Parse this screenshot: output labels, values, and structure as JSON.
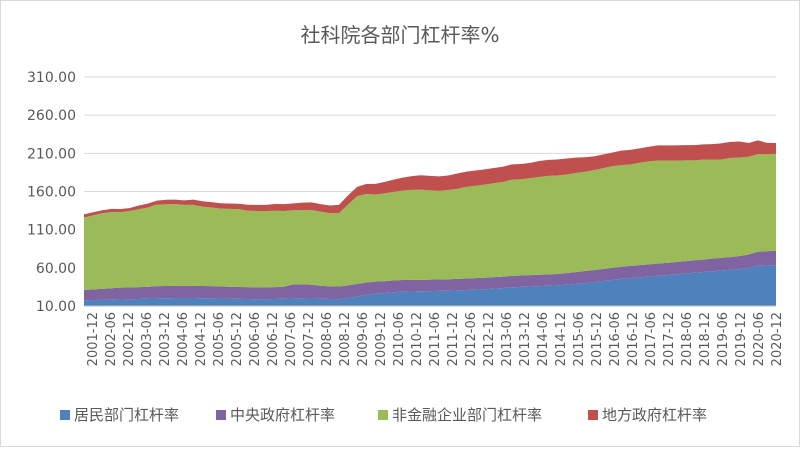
{
  "chart_data": {
    "type": "area",
    "stacked": true,
    "title": "社科院各部门杠杆率%",
    "xlabel": "",
    "ylabel": "",
    "ylim": [
      10,
      310
    ],
    "yticks": [
      "10.00",
      "60.00",
      "110.00",
      "160.00",
      "210.00",
      "260.00",
      "310.00"
    ],
    "grid": true,
    "legend_position": "bottom",
    "x_tick_labels": [
      "2001-12",
      "2002-06",
      "2002-12",
      "2003-06",
      "2003-12",
      "2004-06",
      "2004-12",
      "2005-06",
      "2005-12",
      "2006-06",
      "2006-12",
      "2007-06",
      "2007-12",
      "2008-06",
      "2008-12",
      "2009-06",
      "2009-12",
      "2010-06",
      "2010-12",
      "2011-06",
      "2011-12",
      "2012-06",
      "2012-12",
      "2013-06",
      "2013-12",
      "2014-06",
      "2014-12",
      "2015-06",
      "2015-12",
      "2016-06",
      "2016-12",
      "2017-06",
      "2017-12",
      "2018-06",
      "2018-12",
      "2019-06",
      "2019-12",
      "2020-06",
      "2020-12"
    ],
    "x_quarters": [
      "2001-12",
      "2002-03",
      "2002-06",
      "2002-09",
      "2002-12",
      "2003-03",
      "2003-06",
      "2003-09",
      "2003-12",
      "2004-03",
      "2004-06",
      "2004-09",
      "2004-12",
      "2005-03",
      "2005-06",
      "2005-09",
      "2005-12",
      "2006-03",
      "2006-06",
      "2006-09",
      "2006-12",
      "2007-03",
      "2007-06",
      "2007-09",
      "2007-12",
      "2008-03",
      "2008-06",
      "2008-09",
      "2008-12",
      "2009-03",
      "2009-06",
      "2009-09",
      "2009-12",
      "2010-03",
      "2010-06",
      "2010-09",
      "2010-12",
      "2011-03",
      "2011-06",
      "2011-09",
      "2011-12",
      "2012-03",
      "2012-06",
      "2012-09",
      "2012-12",
      "2013-03",
      "2013-06",
      "2013-09",
      "2013-12",
      "2014-03",
      "2014-06",
      "2014-09",
      "2014-12",
      "2015-03",
      "2015-06",
      "2015-09",
      "2015-12",
      "2016-03",
      "2016-06",
      "2016-09",
      "2016-12",
      "2017-03",
      "2017-06",
      "2017-09",
      "2017-12",
      "2018-03",
      "2018-06",
      "2018-09",
      "2018-12",
      "2019-03",
      "2019-06",
      "2019-09",
      "2019-12",
      "2020-03",
      "2020-06",
      "2020-09",
      "2020-12"
    ],
    "series": [
      {
        "name": "居民部门杠杆率",
        "color": "#4f81bd",
        "values": [
          17.5,
          17.8,
          18.0,
          18.2,
          18.5,
          18.8,
          19.2,
          19.6,
          20.0,
          20.2,
          20.4,
          20.4,
          20.4,
          20.2,
          20.0,
          19.8,
          19.6,
          19.4,
          19.2,
          19.0,
          19.0,
          19.2,
          19.6,
          20.0,
          20.0,
          19.8,
          19.5,
          19.2,
          19.0,
          20.5,
          22.5,
          24.5,
          26.0,
          27.0,
          28.0,
          28.8,
          29.0,
          29.3,
          29.5,
          29.8,
          30.0,
          30.5,
          31.0,
          31.5,
          32.0,
          32.8,
          33.5,
          34.5,
          35.0,
          35.5,
          36.0,
          36.5,
          37.0,
          37.8,
          38.8,
          40.0,
          41.0,
          42.5,
          44.0,
          45.5,
          46.5,
          47.5,
          48.5,
          49.5,
          50.5,
          51.5,
          52.5,
          53.5,
          54.5,
          55.5,
          56.5,
          57.5,
          58.5,
          60.0,
          62.5,
          63.0,
          63.5
        ]
      },
      {
        "name": "中央政府杠杆率",
        "color": "#8064a2",
        "values": [
          13.5,
          14.0,
          14.5,
          15.0,
          15.5,
          15.5,
          15.5,
          15.5,
          16.0,
          16.0,
          16.0,
          16.0,
          16.0,
          16.0,
          16.0,
          15.8,
          15.6,
          15.5,
          15.5,
          15.5,
          15.5,
          15.5,
          15.8,
          18.5,
          18.5,
          18.0,
          17.0,
          16.5,
          16.5,
          16.5,
          16.5,
          16.3,
          16.0,
          15.5,
          15.5,
          15.3,
          15.2,
          15.0,
          15.0,
          15.0,
          15.0,
          15.0,
          15.0,
          15.0,
          15.0,
          15.0,
          15.0,
          15.0,
          15.0,
          15.0,
          15.0,
          15.0,
          15.0,
          15.5,
          15.5,
          15.8,
          16.0,
          16.0,
          16.0,
          16.0,
          16.0,
          16.0,
          16.0,
          16.0,
          16.0,
          16.0,
          16.2,
          16.2,
          16.3,
          16.5,
          16.5,
          16.5,
          17.0,
          17.5,
          18.5,
          18.7,
          19.0
        ]
      },
      {
        "name": "非金融企业部门杠杆率",
        "color": "#9bbb59",
        "values": [
          95,
          97,
          99,
          100,
          99,
          100,
          102,
          104,
          107,
          107,
          107,
          106,
          106,
          104,
          103,
          102,
          102,
          102,
          100,
          100,
          100,
          100,
          99,
          97,
          97,
          98,
          97,
          96,
          96,
          106,
          115,
          116,
          114,
          115,
          116,
          117,
          118,
          118,
          117,
          116,
          117,
          118,
          120,
          121,
          122,
          123,
          124,
          126,
          126,
          127,
          128,
          129,
          129,
          129,
          130,
          130,
          131,
          132,
          133,
          133,
          133,
          134,
          135,
          135,
          134,
          133,
          132,
          131,
          131,
          130,
          129,
          130,
          129,
          128,
          128,
          127,
          127
        ]
      },
      {
        "name": "地方政府杠杆率",
        "color": "#c0504d",
        "values": [
          4,
          4,
          4,
          4,
          4,
          4,
          5,
          5,
          5,
          6,
          6,
          6,
          7,
          7,
          7,
          7,
          7,
          7,
          8,
          8,
          8,
          9,
          9,
          9,
          10,
          10,
          10,
          10,
          11,
          12,
          12,
          13,
          14,
          15,
          16,
          17,
          18,
          19,
          19,
          19,
          19,
          20,
          20,
          20,
          20,
          20,
          20,
          20,
          20,
          20,
          21,
          21,
          21,
          21,
          20,
          19,
          18,
          18,
          18,
          19,
          19,
          19,
          19,
          20,
          20,
          20,
          20,
          20,
          20,
          20,
          21,
          21,
          21,
          18,
          18,
          15,
          14
        ]
      }
    ]
  }
}
